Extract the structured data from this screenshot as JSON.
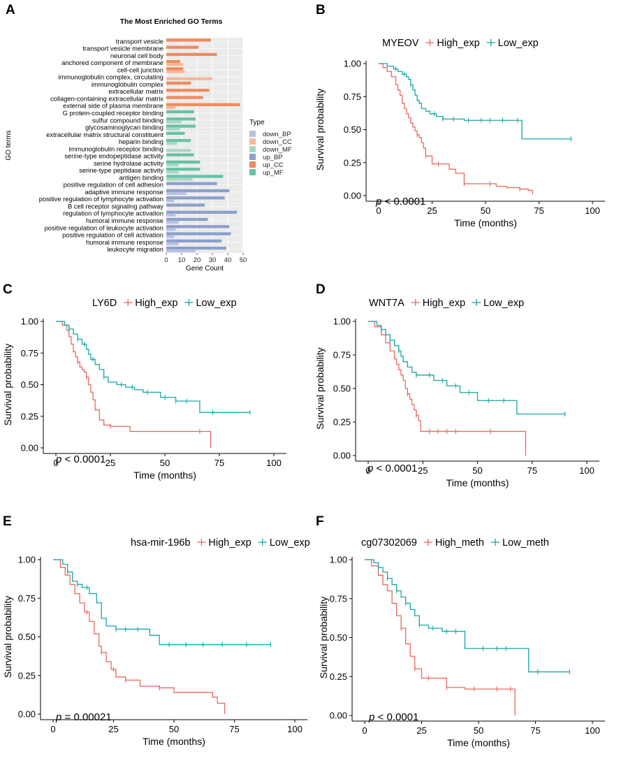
{
  "chart_data": [
    {
      "panel": "A",
      "type": "bar",
      "orientation": "horizontal",
      "title": "The Most Enriched GO Terms",
      "xlabel": "Gene Count",
      "ylabel": "GO terms",
      "xlim": [
        0,
        50
      ],
      "xticks": [
        "0",
        "10",
        "20",
        "30",
        "40",
        "50"
      ],
      "legend_title": "Type",
      "legend": [
        {
          "name": "down_BP",
          "color": "#B6C2E2"
        },
        {
          "name": "down_CC",
          "color": "#F4B896"
        },
        {
          "name": "down_MF",
          "color": "#A7D8C4"
        },
        {
          "name": "up_BP",
          "color": "#8CA0CB"
        },
        {
          "name": "up_CC",
          "color": "#EE8B60"
        },
        {
          "name": "up_MF",
          "color": "#66C2A5"
        }
      ],
      "terms": [
        {
          "term": "transport vesicle",
          "up": 29,
          "down": 0,
          "group": "CC"
        },
        {
          "term": "transport vesicle membrane",
          "up": 21,
          "down": 0,
          "group": "CC"
        },
        {
          "term": "neuronal cell body",
          "up": 33,
          "down": 0,
          "group": "CC"
        },
        {
          "term": "anchored component of membrane",
          "up": 9,
          "down": 11,
          "group": "CC"
        },
        {
          "term": "cell-cell junction",
          "up": 11,
          "down": 12,
          "group": "CC"
        },
        {
          "term": "immunoglobulin complex, circulating",
          "up": 0,
          "down": 30,
          "group": "CC"
        },
        {
          "term": "immunoglobulin complex",
          "up": 16,
          "down": 0,
          "group": "CC"
        },
        {
          "term": "extracellular matrix",
          "up": 28,
          "down": 0,
          "group": "CC"
        },
        {
          "term": "collagen-containing extracellular matrix",
          "up": 24,
          "down": 0,
          "group": "CC"
        },
        {
          "term": "external side of plasma membrane",
          "up": 48,
          "down": 6,
          "group": "CC"
        },
        {
          "term": "G protein-coupled receptor binding",
          "up": 18,
          "down": 0,
          "group": "MF"
        },
        {
          "term": "sulfur compound binding",
          "up": 19,
          "down": 10,
          "group": "MF"
        },
        {
          "term": "glycosaminoglycan binding",
          "up": 19,
          "down": 9,
          "group": "MF"
        },
        {
          "term": "extracellular matrix structural constituent",
          "up": 12,
          "down": 0,
          "group": "MF"
        },
        {
          "term": "heparin binding",
          "up": 16,
          "down": 7,
          "group": "MF"
        },
        {
          "term": "immunoglobulin receptor binding",
          "up": 0,
          "down": 16,
          "group": "MF"
        },
        {
          "term": "serine-type endopeptidase activity",
          "up": 18,
          "down": 0,
          "group": "MF"
        },
        {
          "term": "serine hydrolase activity",
          "up": 22,
          "down": 8,
          "group": "MF"
        },
        {
          "term": "serine-type peptidase activity",
          "up": 22,
          "down": 8,
          "group": "MF"
        },
        {
          "term": "antigen binding",
          "up": 37,
          "down": 17,
          "group": "MF"
        },
        {
          "term": "positive regulation of cell adhesion",
          "up": 33,
          "down": 0,
          "group": "BP"
        },
        {
          "term": "adaptive immune response",
          "up": 41,
          "down": 13,
          "group": "BP"
        },
        {
          "term": "positive regulation of lymphocyte activation",
          "up": 38,
          "down": 5,
          "group": "BP"
        },
        {
          "term": "B cell receptor signaling pathway",
          "up": 25,
          "down": 0,
          "group": "BP"
        },
        {
          "term": "regulation of lymphocyte activation",
          "up": 46,
          "down": 6,
          "group": "BP"
        },
        {
          "term": "humoral immune response",
          "up": 27,
          "down": 8,
          "group": "BP"
        },
        {
          "term": "positive regulation of leukocyte activation",
          "up": 41,
          "down": 6,
          "group": "BP"
        },
        {
          "term": "positive regulation of cell activation",
          "up": 42,
          "down": 5,
          "group": "BP"
        },
        {
          "term": "humoral immune response",
          "up": 36,
          "down": 8,
          "group": "BP"
        },
        {
          "term": "leukocyte migration",
          "up": 39,
          "down": 19,
          "group": "BP"
        }
      ]
    },
    {
      "panel": "B",
      "type": "line",
      "subtype": "kaplan-meier",
      "title": "MYEOV",
      "xlabel": "Time (months)",
      "ylabel": "Survival probability",
      "xlim": [
        0,
        100
      ],
      "ylim": [
        0,
        1
      ],
      "xticks": [
        "0",
        "25",
        "50",
        "75",
        "100"
      ],
      "yticks": [
        "0.00",
        "0.25",
        "0.50",
        "0.75",
        "1.00"
      ],
      "pvalue_label": "p",
      "pvalue_text": "< 0.0001",
      "series": [
        {
          "name": "High_exp",
          "color": "#E8685E",
          "x": [
            0,
            2,
            4,
            6,
            8,
            9,
            10,
            11,
            12,
            13,
            14,
            15,
            16,
            17,
            18,
            19,
            20,
            21,
            22,
            25,
            30,
            33,
            36,
            40,
            50,
            55,
            60,
            66,
            70,
            72
          ],
          "y": [
            1.0,
            0.97,
            0.94,
            0.9,
            0.84,
            0.8,
            0.76,
            0.7,
            0.66,
            0.62,
            0.59,
            0.55,
            0.52,
            0.49,
            0.46,
            0.44,
            0.4,
            0.36,
            0.3,
            0.24,
            0.24,
            0.2,
            0.17,
            0.09,
            0.09,
            0.07,
            0.06,
            0.05,
            0.04,
            0.01
          ],
          "censor_x": [
            18,
            22,
            28,
            40,
            52,
            66
          ]
        },
        {
          "name": "Low_exp",
          "color": "#17A6A6",
          "x": [
            0,
            4,
            7,
            9,
            11,
            13,
            14,
            15,
            16,
            17,
            18,
            19,
            20,
            22,
            24,
            27,
            30,
            35,
            40,
            50,
            67,
            90
          ],
          "y": [
            1.0,
            0.98,
            0.96,
            0.94,
            0.92,
            0.9,
            0.88,
            0.84,
            0.8,
            0.76,
            0.72,
            0.7,
            0.66,
            0.64,
            0.62,
            0.6,
            0.58,
            0.58,
            0.57,
            0.57,
            0.43,
            0.43
          ],
          "censor_x": [
            8,
            12,
            15,
            26,
            30,
            35,
            42,
            48,
            52,
            58,
            65,
            90
          ]
        }
      ]
    },
    {
      "panel": "C",
      "type": "line",
      "subtype": "kaplan-meier",
      "title": "LY6D",
      "xlabel": "Time (months)",
      "ylabel": "Survival probability",
      "xlim": [
        0,
        100
      ],
      "ylim": [
        0,
        1
      ],
      "xticks": [
        "0",
        "25",
        "50",
        "75",
        "100"
      ],
      "yticks": [
        "0.00",
        "0.25",
        "0.50",
        "0.75",
        "1.00"
      ],
      "pvalue_label": "p",
      "pvalue_text": "< 0.0001",
      "series": [
        {
          "name": "High_exp",
          "color": "#E8685E",
          "x": [
            0,
            3,
            5,
            6,
            7,
            8,
            9,
            10,
            11,
            12,
            13,
            14,
            15,
            16,
            17,
            18,
            20,
            22,
            25,
            34,
            50,
            66,
            71
          ],
          "y": [
            1.0,
            0.97,
            0.93,
            0.88,
            0.82,
            0.76,
            0.72,
            0.68,
            0.64,
            0.62,
            0.6,
            0.56,
            0.5,
            0.44,
            0.38,
            0.3,
            0.22,
            0.18,
            0.17,
            0.13,
            0.13,
            0.13,
            0.0
          ],
          "censor_x": [
            10,
            14,
            25,
            66
          ]
        },
        {
          "name": "Low_exp",
          "color": "#17A6A6",
          "x": [
            0,
            4,
            6,
            8,
            10,
            12,
            14,
            15,
            16,
            18,
            20,
            22,
            24,
            28,
            32,
            36,
            40,
            48,
            55,
            60,
            66,
            70,
            89
          ],
          "y": [
            1.0,
            0.97,
            0.94,
            0.9,
            0.86,
            0.82,
            0.78,
            0.74,
            0.7,
            0.66,
            0.62,
            0.56,
            0.52,
            0.5,
            0.48,
            0.46,
            0.44,
            0.4,
            0.37,
            0.37,
            0.28,
            0.28,
            0.28
          ],
          "censor_x": [
            6,
            10,
            13,
            17,
            22,
            30,
            35,
            42,
            50,
            55,
            60,
            72,
            89
          ]
        }
      ]
    },
    {
      "panel": "D",
      "type": "line",
      "subtype": "kaplan-meier",
      "title": "WNT7A",
      "xlabel": "Time (months)",
      "ylabel": "Survival probability",
      "xlim": [
        0,
        100
      ],
      "ylim": [
        0,
        1
      ],
      "xticks": [
        "0",
        "25",
        "50",
        "75",
        "100"
      ],
      "yticks": [
        "0.00",
        "0.25",
        "0.50",
        "0.75",
        "1.00"
      ],
      "pvalue_label": "p",
      "pvalue_text": "< 0.0001",
      "series": [
        {
          "name": "High_exp",
          "color": "#E8685E",
          "x": [
            0,
            3,
            6,
            8,
            10,
            12,
            13,
            14,
            15,
            16,
            17,
            18,
            19,
            20,
            21,
            22,
            23,
            24,
            72
          ],
          "y": [
            1.0,
            0.96,
            0.9,
            0.84,
            0.78,
            0.72,
            0.68,
            0.64,
            0.6,
            0.56,
            0.5,
            0.46,
            0.42,
            0.38,
            0.34,
            0.3,
            0.26,
            0.18,
            0.0
          ],
          "censor_x": [
            18,
            22,
            28,
            32,
            36,
            40,
            56
          ]
        },
        {
          "name": "Low_exp",
          "color": "#17A6A6",
          "x": [
            0,
            4,
            6,
            8,
            10,
            12,
            14,
            15,
            16,
            18,
            20,
            22,
            25,
            30,
            36,
            42,
            50,
            60,
            68,
            90
          ],
          "y": [
            1.0,
            0.97,
            0.94,
            0.9,
            0.86,
            0.82,
            0.78,
            0.74,
            0.7,
            0.66,
            0.62,
            0.6,
            0.6,
            0.56,
            0.52,
            0.47,
            0.41,
            0.41,
            0.31,
            0.31
          ],
          "censor_x": [
            6,
            10,
            14,
            22,
            28,
            34,
            40,
            46,
            55,
            62,
            90
          ]
        }
      ]
    },
    {
      "panel": "E",
      "type": "line",
      "subtype": "kaplan-meier",
      "title": "hsa-mir-196b",
      "xlabel": "Time (months)",
      "ylabel": "Survival probability",
      "xlim": [
        0,
        100
      ],
      "ylim": [
        0,
        1
      ],
      "xticks": [
        "0",
        "25",
        "50",
        "75",
        "100"
      ],
      "yticks": [
        "0.00",
        "0.25",
        "0.50",
        "0.75",
        "1.00"
      ],
      "pvalue_label": "p",
      "pvalue_text": "= 0.00021",
      "series": [
        {
          "name": "High_exp",
          "color": "#E8685E",
          "x": [
            0,
            3,
            5,
            7,
            9,
            11,
            13,
            15,
            17,
            19,
            20,
            22,
            24,
            26,
            30,
            36,
            44,
            50,
            66,
            68,
            71
          ],
          "y": [
            1.0,
            0.95,
            0.9,
            0.84,
            0.78,
            0.72,
            0.66,
            0.6,
            0.52,
            0.44,
            0.4,
            0.34,
            0.29,
            0.24,
            0.22,
            0.18,
            0.17,
            0.14,
            0.11,
            0.07,
            0.0
          ],
          "censor_x": [
            14,
            20,
            25,
            30,
            44
          ]
        },
        {
          "name": "Low_exp",
          "color": "#17A6A6",
          "x": [
            0,
            4,
            6,
            8,
            10,
            12,
            15,
            18,
            20,
            22,
            26,
            30,
            40,
            44,
            90
          ],
          "y": [
            1.0,
            0.97,
            0.92,
            0.86,
            0.84,
            0.82,
            0.78,
            0.72,
            0.62,
            0.57,
            0.55,
            0.55,
            0.51,
            0.45,
            0.45
          ],
          "censor_x": [
            6,
            10,
            14,
            26,
            30,
            35,
            48,
            55,
            62,
            70,
            80,
            90
          ]
        }
      ]
    },
    {
      "panel": "F",
      "type": "line",
      "subtype": "kaplan-meier",
      "title": "cg07302069",
      "xlabel": "Time (months)",
      "ylabel": "Survival probability",
      "xlim": [
        0,
        100
      ],
      "ylim": [
        0,
        1
      ],
      "xticks": [
        "0",
        "25",
        "50",
        "75",
        "100"
      ],
      "yticks": [
        "0.00",
        "0.25",
        "0.50",
        "0.75",
        "1.00"
      ],
      "pvalue_label": "p",
      "pvalue_text": "< 0.0001",
      "series": [
        {
          "name": "High_meth",
          "color": "#E8685E",
          "x": [
            0,
            3,
            6,
            8,
            10,
            12,
            14,
            16,
            18,
            20,
            22,
            25,
            30,
            36,
            44,
            60,
            66
          ],
          "y": [
            1.0,
            0.96,
            0.9,
            0.84,
            0.8,
            0.72,
            0.64,
            0.56,
            0.46,
            0.38,
            0.3,
            0.24,
            0.24,
            0.18,
            0.17,
            0.17,
            0.0
          ],
          "censor_x": [
            16,
            22,
            28,
            36,
            48,
            58,
            64
          ]
        },
        {
          "name": "Low_meth",
          "color": "#17A6A6",
          "x": [
            0,
            4,
            6,
            8,
            10,
            12,
            14,
            16,
            18,
            20,
            22,
            24,
            28,
            34,
            44,
            50,
            72,
            90
          ],
          "y": [
            1.0,
            0.98,
            0.95,
            0.92,
            0.88,
            0.84,
            0.8,
            0.76,
            0.72,
            0.68,
            0.64,
            0.58,
            0.56,
            0.54,
            0.43,
            0.43,
            0.28,
            0.28
          ],
          "censor_x": [
            6,
            10,
            14,
            18,
            24,
            30,
            36,
            40,
            52,
            58,
            62,
            76,
            90
          ]
        }
      ]
    }
  ]
}
